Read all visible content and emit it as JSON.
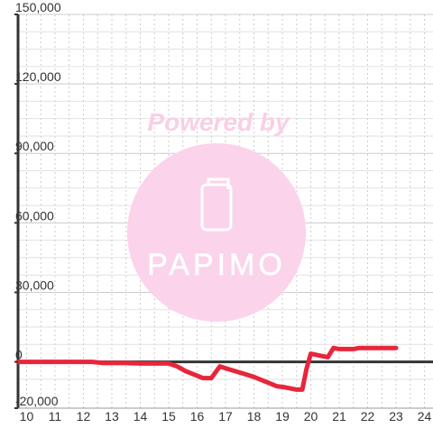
{
  "watermark": {
    "text": "Powered by",
    "logo_text": "PAPIMO",
    "color": "#f9cfe6"
  },
  "chart_data": {
    "type": "line",
    "title": "",
    "xlabel": "",
    "ylabel": "",
    "xlim": [
      9.7,
      24.3
    ],
    "ylim": [
      -20000,
      150000
    ],
    "x_ticks": [
      10,
      11,
      12,
      13,
      14,
      15,
      16,
      17,
      18,
      19,
      20,
      21,
      22,
      23,
      24
    ],
    "x_tick_labels": [
      "10",
      "11",
      "12",
      "13",
      "14",
      "15",
      "16",
      "17",
      "18",
      "19",
      "20",
      "21",
      "22",
      "23",
      "24"
    ],
    "y_ticks": [
      -20000,
      0,
      30000,
      60000,
      90000,
      120000,
      150000
    ],
    "y_tick_labels": [
      "-20,000",
      "0",
      "30,000",
      "60,000",
      "90,000",
      "120,000",
      "150,000"
    ],
    "grid": true,
    "line_color": "#e8253a",
    "series": [
      {
        "points": [
          [
            9.7,
            0
          ],
          [
            10,
            0
          ],
          [
            11,
            0
          ],
          [
            12,
            0
          ],
          [
            12.3,
            0
          ],
          [
            12.7,
            -500
          ],
          [
            13,
            -500
          ],
          [
            13.5,
            -500
          ],
          [
            14,
            -700
          ],
          [
            14.5,
            -700
          ],
          [
            15,
            -700
          ],
          [
            15.3,
            -2000
          ],
          [
            15.6,
            -4000
          ],
          [
            15.9,
            -5500
          ],
          [
            16.2,
            -7000
          ],
          [
            16.5,
            -7000
          ],
          [
            16.8,
            -2000
          ],
          [
            17.2,
            -3500
          ],
          [
            17.6,
            -5000
          ],
          [
            18,
            -6500
          ],
          [
            18.4,
            -8500
          ],
          [
            18.8,
            -10500
          ],
          [
            19.1,
            -11000
          ],
          [
            19.5,
            -12000
          ],
          [
            19.7,
            -12000
          ],
          [
            19.85,
            -3000
          ],
          [
            20,
            3500
          ],
          [
            20.4,
            2500
          ],
          [
            20.6,
            2000
          ],
          [
            20.8,
            6000
          ],
          [
            21,
            5500
          ],
          [
            21.5,
            5500
          ],
          [
            21.7,
            6000
          ],
          [
            22,
            6000
          ],
          [
            22.5,
            6000
          ],
          [
            23,
            6000
          ]
        ]
      }
    ]
  }
}
